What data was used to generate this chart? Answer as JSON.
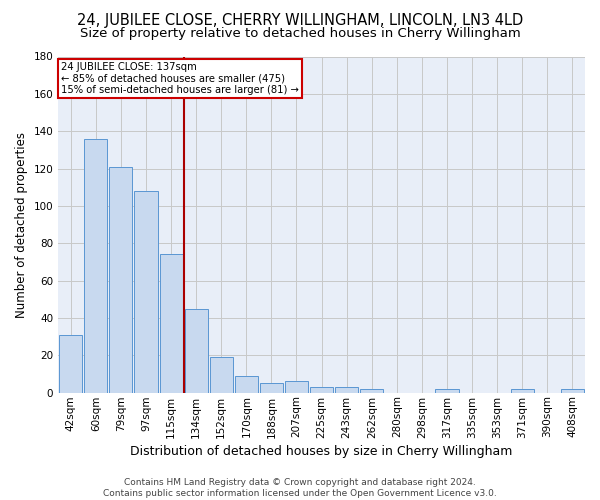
{
  "title": "24, JUBILEE CLOSE, CHERRY WILLINGHAM, LINCOLN, LN3 4LD",
  "subtitle": "Size of property relative to detached houses in Cherry Willingham",
  "xlabel": "Distribution of detached houses by size in Cherry Willingham",
  "ylabel": "Number of detached properties",
  "footer_line1": "Contains HM Land Registry data © Crown copyright and database right 2024.",
  "footer_line2": "Contains public sector information licensed under the Open Government Licence v3.0.",
  "categories": [
    "42sqm",
    "60sqm",
    "79sqm",
    "97sqm",
    "115sqm",
    "134sqm",
    "152sqm",
    "170sqm",
    "188sqm",
    "207sqm",
    "225sqm",
    "243sqm",
    "262sqm",
    "280sqm",
    "298sqm",
    "317sqm",
    "335sqm",
    "353sqm",
    "371sqm",
    "390sqm",
    "408sqm"
  ],
  "values": [
    31,
    136,
    121,
    108,
    74,
    45,
    19,
    9,
    5,
    6,
    3,
    3,
    2,
    0,
    0,
    2,
    0,
    0,
    2,
    0,
    2
  ],
  "bar_color": "#c8d9ef",
  "bar_edge_color": "#5a96d3",
  "subject_line_color": "#aa0000",
  "annotation_line1": "24 JUBILEE CLOSE: 137sqm",
  "annotation_line2": "← 85% of detached houses are smaller (475)",
  "annotation_line3": "15% of semi-detached houses are larger (81) →",
  "annotation_box_color": "#cc0000",
  "ylim": [
    0,
    180
  ],
  "yticks": [
    0,
    20,
    40,
    60,
    80,
    100,
    120,
    140,
    160,
    180
  ],
  "grid_color": "#c8c8c8",
  "bg_color": "#e8eef8",
  "title_fontsize": 10.5,
  "subtitle_fontsize": 9.5,
  "xlabel_fontsize": 9,
  "ylabel_fontsize": 8.5,
  "tick_fontsize": 7.5,
  "footer_fontsize": 6.5
}
